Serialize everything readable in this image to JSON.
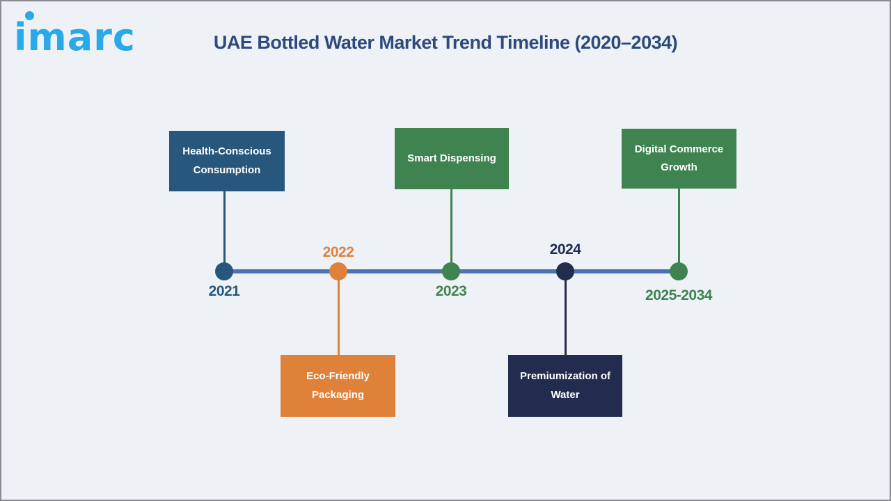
{
  "page": {
    "background": "#EEF2F7",
    "border_color": "#8B8B93"
  },
  "logo": {
    "text": "imarc",
    "color": "#29A9E8"
  },
  "header": {
    "title": "UAE Bottled Water Market Trend Timeline (2020–2034)",
    "color": "#2E4A7B"
  },
  "timeline": {
    "axis_color": "#4C72B4",
    "milestones": [
      {
        "year": "2021",
        "label": "Health-Conscious Consumption",
        "color": "#27577D",
        "box_position": "above"
      },
      {
        "year": "2022",
        "label": "Eco-Friendly Packaging",
        "color": "#E08139",
        "box_position": "below"
      },
      {
        "year": "2023",
        "label": "Smart Dispensing",
        "color": "#3E8350",
        "box_position": "above"
      },
      {
        "year": "2024",
        "label": "Premiumization of Water",
        "color": "#212C4E",
        "box_position": "below"
      },
      {
        "year": "2025-2034",
        "label": "Digital Commerce Growth",
        "color": "#3E8350",
        "box_position": "above"
      }
    ]
  }
}
